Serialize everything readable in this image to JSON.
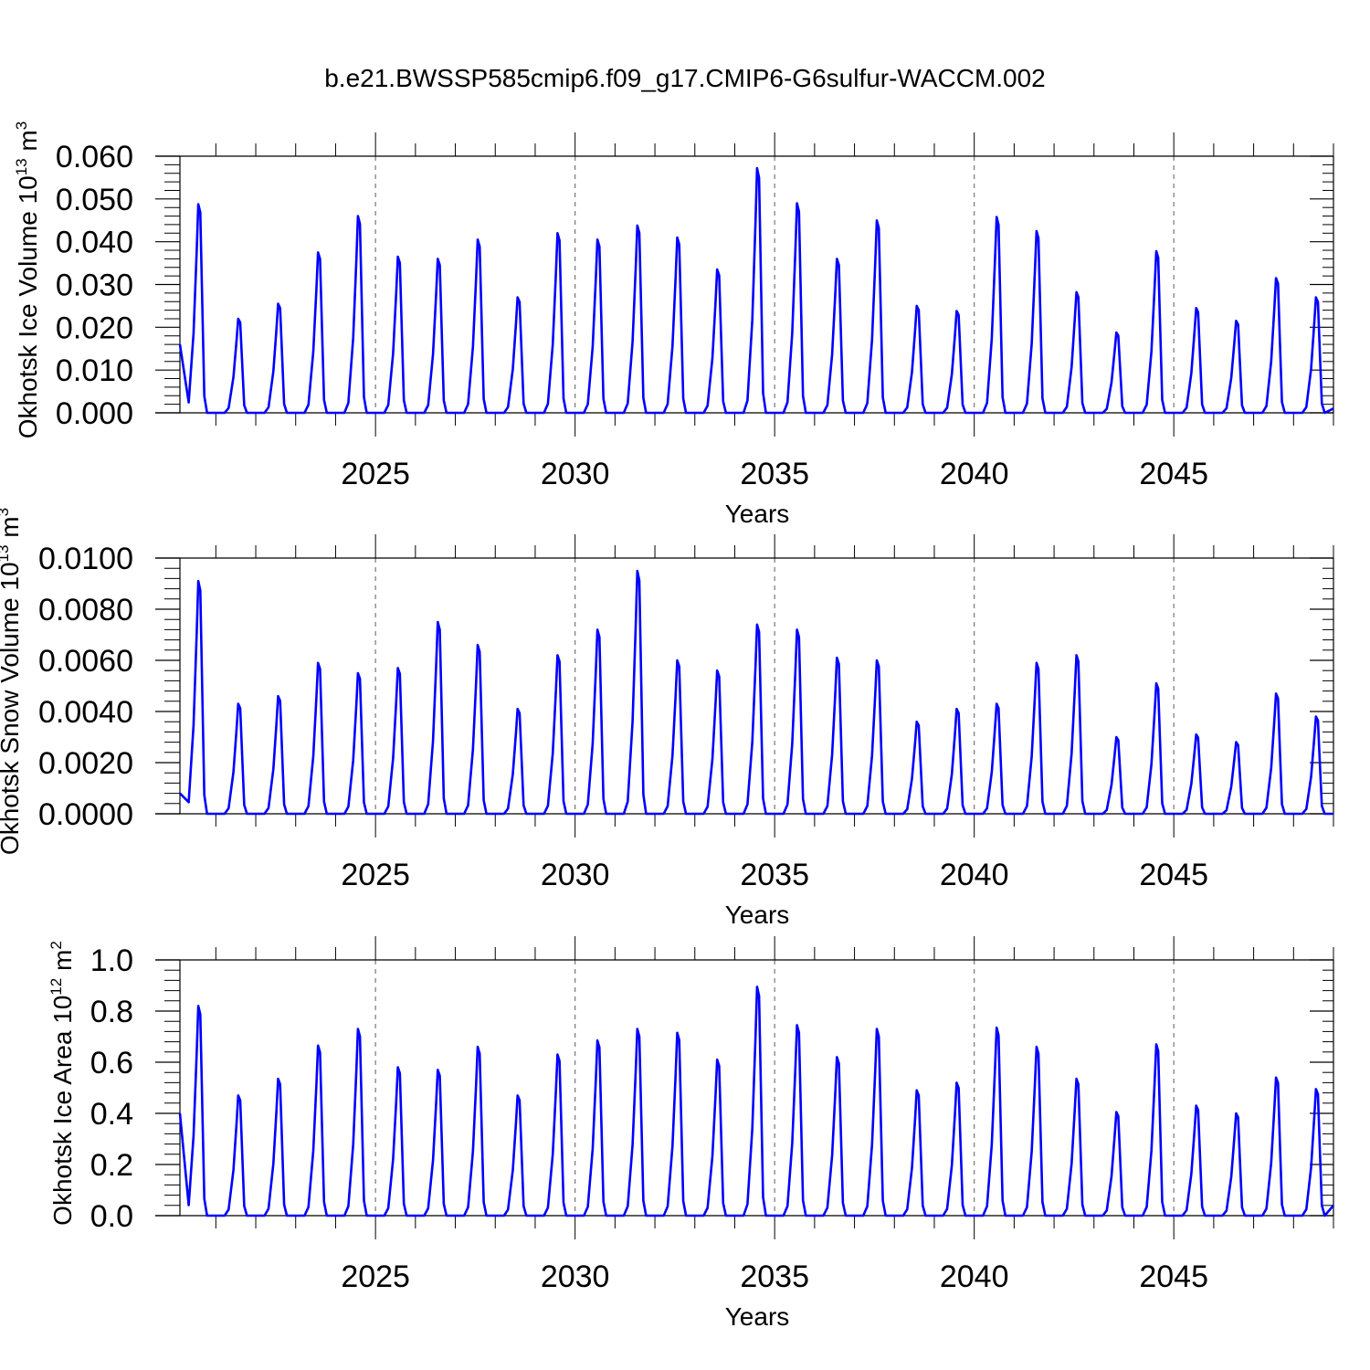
{
  "page": {
    "title": "b.e21.BWSSP585cmip6.f09_g17.CMIP6-G6sulfur-WACCM.002"
  },
  "chart_data": [
    {
      "type": "line",
      "title": "b.e21.BWSSP585cmip6.f09_g17.CMIP6-G6sulfur-WACCM.002",
      "ylabel_base": "Okhotsk Ice Volume 10",
      "ylabel_exp": "13",
      "ylabel_unit": " m",
      "ylabel_unit_exp": "3",
      "xlabel": "Years",
      "xlim": [
        2020.1,
        2049.0
      ],
      "ylim": [
        0,
        0.06
      ],
      "yticks": [
        "0.000",
        "0.010",
        "0.020",
        "0.030",
        "0.040",
        "0.050",
        "0.060"
      ],
      "xticks": [
        "2025",
        "2030",
        "2035",
        "2040",
        "2045"
      ],
      "grid": "dashed verticals at 5-year ticks",
      "series": [
        {
          "name": "Okhotsk Ice Volume",
          "color": "#0000ff",
          "start": 0.016,
          "peaks": [
            0.0488,
            0.022,
            0.0255,
            0.0375,
            0.046,
            0.0365,
            0.036,
            0.0405,
            0.027,
            0.042,
            0.0405,
            0.0438,
            0.041,
            0.0335,
            0.0572,
            0.049,
            0.036,
            0.045,
            0.025,
            0.0238,
            0.0458,
            0.0425,
            0.0282,
            0.0188,
            0.0378,
            0.0245,
            0.0215,
            0.0315,
            0.027
          ],
          "end": 0.001
        }
      ]
    },
    {
      "type": "line",
      "ylabel_base": "Okhotsk Snow Volume 10",
      "ylabel_exp": "13",
      "ylabel_unit": " m",
      "ylabel_unit_exp": "3",
      "xlabel": "Years",
      "xlim": [
        2020.1,
        2049.0
      ],
      "ylim": [
        0,
        0.01
      ],
      "yticks": [
        "0.0000",
        "0.0020",
        "0.0040",
        "0.0060",
        "0.0080",
        "0.0100"
      ],
      "xticks": [
        "2025",
        "2030",
        "2035",
        "2040",
        "2045"
      ],
      "grid": "dashed verticals at 5-year ticks",
      "series": [
        {
          "name": "Okhotsk Snow Volume",
          "color": "#0000ff",
          "start": 0.0008,
          "peaks": [
            0.0091,
            0.0043,
            0.0046,
            0.0059,
            0.0055,
            0.0057,
            0.0075,
            0.0066,
            0.0041,
            0.0062,
            0.0072,
            0.0095,
            0.006,
            0.0056,
            0.0074,
            0.0072,
            0.0061,
            0.006,
            0.0036,
            0.0041,
            0.0043,
            0.0059,
            0.0062,
            0.003,
            0.0051,
            0.0031,
            0.0028,
            0.0047,
            0.0038
          ],
          "end": 0.0
        }
      ]
    },
    {
      "type": "line",
      "ylabel_base": "Okhotsk Ice Area 10",
      "ylabel_exp": "12",
      "ylabel_unit": " m",
      "ylabel_unit_exp": "2",
      "xlabel": "Years",
      "xlim": [
        2020.1,
        2049.0
      ],
      "ylim": [
        0,
        1.0
      ],
      "yticks": [
        "0.0",
        "0.2",
        "0.4",
        "0.6",
        "0.8",
        "1.0"
      ],
      "xticks": [
        "2025",
        "2030",
        "2035",
        "2040",
        "2045"
      ],
      "grid": "dashed verticals at 5-year ticks",
      "series": [
        {
          "name": "Okhotsk Ice Area",
          "color": "#0000ff",
          "start": 0.4,
          "peaks": [
            0.82,
            0.47,
            0.535,
            0.665,
            0.73,
            0.58,
            0.57,
            0.66,
            0.47,
            0.63,
            0.685,
            0.73,
            0.715,
            0.61,
            0.895,
            0.745,
            0.62,
            0.73,
            0.49,
            0.52,
            0.735,
            0.66,
            0.535,
            0.405,
            0.67,
            0.43,
            0.4,
            0.54,
            0.495
          ],
          "end": 0.04
        }
      ]
    }
  ]
}
